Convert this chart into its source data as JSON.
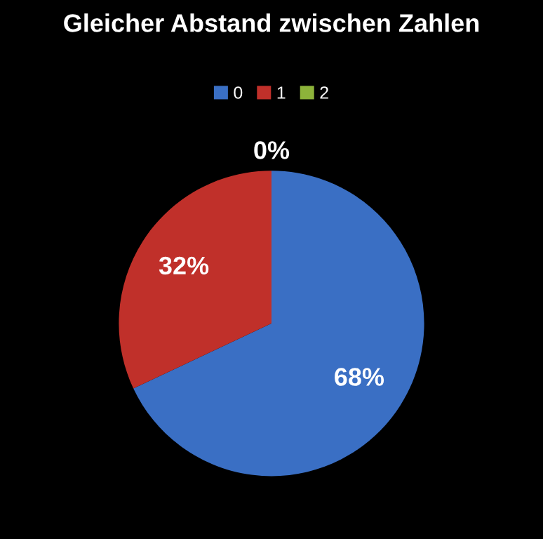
{
  "chart_data": {
    "type": "pie",
    "title": "Gleicher Abstand zwischen Zahlen",
    "categories": [
      "0",
      "1",
      "2"
    ],
    "values": [
      68,
      32,
      0
    ],
    "colors": [
      "#3a6fc4",
      "#c0302a",
      "#8db33a"
    ],
    "value_labels": [
      "68%",
      "32%",
      "0%"
    ],
    "legend": "top"
  }
}
